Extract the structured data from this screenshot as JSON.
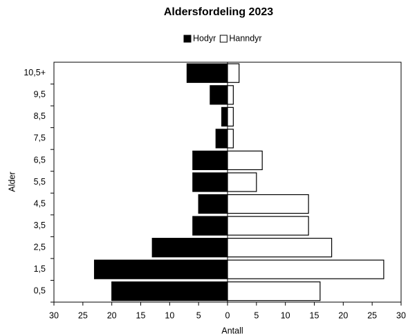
{
  "chart_data": {
    "type": "pyramid",
    "title": "Aldersfordeling 2023",
    "x_label": "Antall",
    "y_label": "Alder",
    "categories": [
      "0,5",
      "1,5",
      "2,5",
      "3,5",
      "4,5",
      "5,5",
      "6,5",
      "7,5",
      "8,5",
      "9,5",
      "10,5+"
    ],
    "series": [
      {
        "name": "Hodyr",
        "color": "#000000",
        "values": [
          -20,
          -23,
          -13,
          -6,
          -5,
          -6,
          -6,
          -2,
          -1,
          -3,
          -7
        ]
      },
      {
        "name": "Hanndyr",
        "color": "#ffffff",
        "values": [
          16,
          27,
          18,
          14,
          14,
          5,
          6,
          1,
          1,
          1,
          2
        ]
      }
    ],
    "xlim": [
      -30,
      30
    ],
    "xticks": [
      {
        "value": -30,
        "label": "30"
      },
      {
        "value": -25,
        "label": "25"
      },
      {
        "value": -20,
        "label": "20"
      },
      {
        "value": -15,
        "label": "15"
      },
      {
        "value": -10,
        "label": "10"
      },
      {
        "value": -5,
        "label": "5"
      },
      0,
      5,
      10,
      15,
      20,
      25,
      30
    ],
    "legend": "top"
  }
}
